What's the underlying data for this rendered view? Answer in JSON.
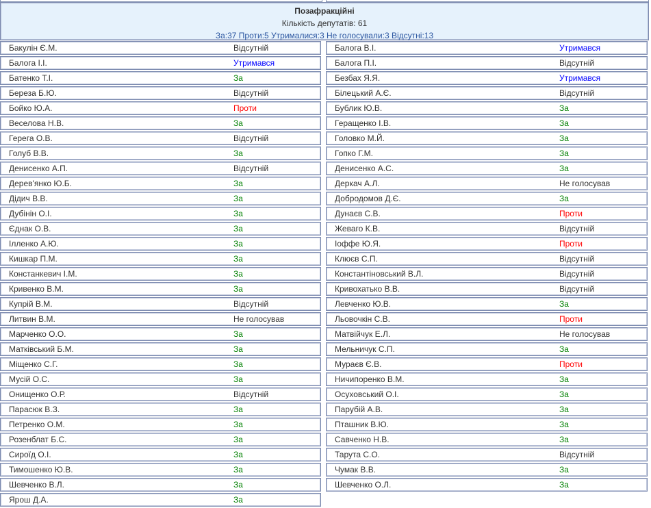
{
  "header": {
    "title": "Позафракційні",
    "count": "Кількість депутатів: 61",
    "summary": "За:37 Проти:5 Утрималися:3 Не голосували:3 Відсутні:13"
  },
  "status_colors": {
    "За": "#008000",
    "Проти": "#ff0000",
    "Утримався": "#0000ff",
    "Відсутній": "#333333",
    "Не голосував": "#333333"
  },
  "left": [
    [
      "Бакулін Є.М.",
      "Відсутній"
    ],
    [
      "Балога І.І.",
      "Утримався"
    ],
    [
      "Батенко Т.І.",
      "За"
    ],
    [
      "Береза Б.Ю.",
      "Відсутній"
    ],
    [
      "Бойко Ю.А.",
      "Проти"
    ],
    [
      "Веселова Н.В.",
      "За"
    ],
    [
      "Герега О.В.",
      "Відсутній"
    ],
    [
      "Голуб В.В.",
      "За"
    ],
    [
      "Денисенко А.П.",
      "Відсутній"
    ],
    [
      "Дерев'янко Ю.Б.",
      "За"
    ],
    [
      "Дідич В.В.",
      "За"
    ],
    [
      "Дубінін О.І.",
      "За"
    ],
    [
      "Єднак О.В.",
      "За"
    ],
    [
      "Ілленко А.Ю.",
      "За"
    ],
    [
      "Кишкар П.М.",
      "За"
    ],
    [
      "Констанкевич І.М.",
      "За"
    ],
    [
      "Кривенко В.М.",
      "За"
    ],
    [
      "Купрій В.М.",
      "Відсутній"
    ],
    [
      "Литвин В.М.",
      "Не голосував"
    ],
    [
      "Марченко О.О.",
      "За"
    ],
    [
      "Матківський Б.М.",
      "За"
    ],
    [
      "Міщенко С.Г.",
      "За"
    ],
    [
      "Мусій О.С.",
      "За"
    ],
    [
      "Онищенко О.Р.",
      "Відсутній"
    ],
    [
      "Парасюк В.З.",
      "За"
    ],
    [
      "Петренко О.М.",
      "За"
    ],
    [
      "Розенблат Б.С.",
      "За"
    ],
    [
      "Сироїд О.І.",
      "За"
    ],
    [
      "Тимошенко Ю.В.",
      "За"
    ],
    [
      "Шевченко В.Л.",
      "За"
    ],
    [
      "Ярош Д.А.",
      "За"
    ]
  ],
  "right": [
    [
      "Балога В.І.",
      "Утримався"
    ],
    [
      "Балога П.І.",
      "Відсутній"
    ],
    [
      "Безбах Я.Я.",
      "Утримався"
    ],
    [
      "Білецький А.Є.",
      "Відсутній"
    ],
    [
      "Бублик Ю.В.",
      "За"
    ],
    [
      "Геращенко І.В.",
      "За"
    ],
    [
      "Головко М.Й.",
      "За"
    ],
    [
      "Гопко Г.М.",
      "За"
    ],
    [
      "Денисенко А.С.",
      "За"
    ],
    [
      "Деркач А.Л.",
      "Не голосував"
    ],
    [
      "Добродомов Д.Є.",
      "За"
    ],
    [
      "Дунаєв С.В.",
      "Проти"
    ],
    [
      "Жеваго К.В.",
      "Відсутній"
    ],
    [
      "Іоффе Ю.Я.",
      "Проти"
    ],
    [
      "Клюєв С.П.",
      "Відсутній"
    ],
    [
      "Константіновський В.Л.",
      "Відсутній"
    ],
    [
      "Кривохатько В.В.",
      "Відсутній"
    ],
    [
      "Левченко Ю.В.",
      "За"
    ],
    [
      "Льовочкін С.В.",
      "Проти"
    ],
    [
      "Матвійчук Е.Л.",
      "Не голосував"
    ],
    [
      "Мельничук С.П.",
      "За"
    ],
    [
      "Мураєв Є.В.",
      "Проти"
    ],
    [
      "Ничипоренко В.М.",
      "За"
    ],
    [
      "Осуховський О.І.",
      "За"
    ],
    [
      "Парубій А.В.",
      "За"
    ],
    [
      "Пташник В.Ю.",
      "За"
    ],
    [
      "Савченко Н.В.",
      "За"
    ],
    [
      "Тарута С.О.",
      "Відсутній"
    ],
    [
      "Чумак В.В.",
      "За"
    ],
    [
      "Шевченко О.Л.",
      "За"
    ]
  ]
}
